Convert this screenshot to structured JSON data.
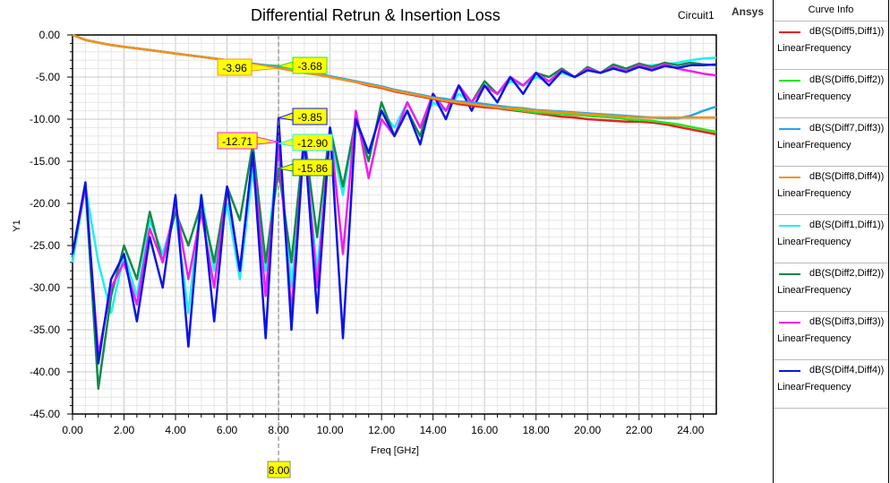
{
  "header": {
    "title": "Differential Retrun & Insertion Loss",
    "circuit": "Circuit1",
    "brand": "Ansys"
  },
  "legend": {
    "header": "Curve Info",
    "items": [
      {
        "name": "dB(S(Diff5,Diff1))",
        "sub": "LinearFrequency",
        "color": "#e8201e"
      },
      {
        "name": "dB(S(Diff6,Diff2))",
        "sub": "LinearFrequency",
        "color": "#22e81e"
      },
      {
        "name": "dB(S(Diff7,Diff3))",
        "sub": "LinearFrequency",
        "color": "#1ea8f0"
      },
      {
        "name": "dB(S(Diff8,Diff4))",
        "sub": "LinearFrequency",
        "color": "#f5901e"
      },
      {
        "name": "dB(S(Diff1,Diff1))",
        "sub": "LinearFrequency",
        "color": "#1ef0f0"
      },
      {
        "name": "dB(S(Diff2,Diff2))",
        "sub": "LinearFrequency",
        "color": "#128a4a"
      },
      {
        "name": "dB(S(Diff3,Diff3))",
        "sub": "LinearFrequency",
        "color": "#f01ef0"
      },
      {
        "name": "dB(S(Diff4,Diff4))",
        "sub": "LinearFrequency",
        "color": "#0a14e6"
      }
    ]
  },
  "chart_data": {
    "type": "line",
    "title": "Differential Retrun & Insertion Loss",
    "xlabel": "Freq [GHz]",
    "ylabel": "Y1",
    "xlim": [
      0,
      25
    ],
    "ylim": [
      -45,
      0
    ],
    "x_ticks": [
      "0.00",
      "2.00",
      "4.00",
      "6.00",
      "8.00",
      "10.00",
      "12.00",
      "14.00",
      "16.00",
      "18.00",
      "20.00",
      "22.00",
      "24.00"
    ],
    "y_ticks": [
      "0.00",
      "-5.00",
      "-10.00",
      "-15.00",
      "-20.00",
      "-25.00",
      "-30.00",
      "-35.00",
      "-40.00",
      "-45.00"
    ],
    "grid": true,
    "legend_position": "right",
    "x": [
      0,
      0.5,
      1,
      1.5,
      2,
      2.5,
      3,
      3.5,
      4,
      4.5,
      5,
      5.5,
      6,
      6.5,
      7,
      7.5,
      8,
      8.5,
      9,
      9.5,
      10,
      10.5,
      11,
      11.5,
      12,
      12.5,
      13,
      13.5,
      14,
      14.5,
      15,
      15.5,
      16,
      16.5,
      17,
      17.5,
      18,
      18.5,
      19,
      19.5,
      20,
      20.5,
      21,
      21.5,
      22,
      22.5,
      23,
      23.5,
      24,
      24.5,
      25
    ],
    "series": [
      {
        "name": "dB(S(Diff5,Diff1))",
        "color": "#e8201e",
        "values": [
          0,
          -0.6,
          -0.9,
          -1.2,
          -1.4,
          -1.6,
          -1.8,
          -2.0,
          -2.2,
          -2.4,
          -2.6,
          -2.8,
          -3.0,
          -3.3,
          -3.5,
          -3.7,
          -3.9,
          -4.2,
          -4.5,
          -4.7,
          -5.0,
          -5.3,
          -5.6,
          -6.0,
          -6.3,
          -6.7,
          -7.0,
          -7.3,
          -7.6,
          -7.9,
          -8.2,
          -8.4,
          -8.6,
          -8.7,
          -8.9,
          -9.1,
          -9.3,
          -9.5,
          -9.7,
          -9.8,
          -10.0,
          -10.1,
          -10.2,
          -10.3,
          -10.3,
          -10.4,
          -10.6,
          -10.9,
          -11.2,
          -11.5,
          -11.8
        ]
      },
      {
        "name": "dB(S(Diff6,Diff2))",
        "color": "#22e81e",
        "values": [
          0,
          -0.6,
          -0.9,
          -1.2,
          -1.4,
          -1.6,
          -1.8,
          -2.0,
          -2.2,
          -2.4,
          -2.6,
          -2.8,
          -3.0,
          -3.3,
          -3.5,
          -3.6,
          -3.68,
          -4.0,
          -4.4,
          -4.6,
          -4.9,
          -5.2,
          -5.5,
          -5.9,
          -6.2,
          -6.6,
          -6.9,
          -7.2,
          -7.5,
          -7.8,
          -8.0,
          -8.2,
          -8.4,
          -8.6,
          -8.8,
          -9.0,
          -9.2,
          -9.3,
          -9.4,
          -9.5,
          -9.6,
          -9.7,
          -9.8,
          -10.0,
          -10.1,
          -10.2,
          -10.4,
          -10.6,
          -10.9,
          -11.2,
          -11.5
        ]
      },
      {
        "name": "dB(S(Diff7,Diff3))",
        "color": "#1ea8f0",
        "values": [
          0,
          -0.6,
          -0.9,
          -1.2,
          -1.4,
          -1.6,
          -1.8,
          -2.0,
          -2.2,
          -2.4,
          -2.6,
          -2.8,
          -3.0,
          -3.2,
          -3.4,
          -3.6,
          -3.8,
          -4.1,
          -4.4,
          -4.6,
          -4.9,
          -5.2,
          -5.5,
          -5.8,
          -6.1,
          -6.5,
          -6.8,
          -7.1,
          -7.4,
          -7.6,
          -7.9,
          -8.0,
          -8.2,
          -8.4,
          -8.6,
          -8.7,
          -8.9,
          -9.0,
          -9.1,
          -9.2,
          -9.3,
          -9.4,
          -9.5,
          -9.6,
          -9.7,
          -9.8,
          -9.9,
          -9.9,
          -9.6,
          -9.0,
          -8.5
        ]
      },
      {
        "name": "dB(S(Diff8,Diff4))",
        "color": "#f5901e",
        "values": [
          0,
          -0.6,
          -0.9,
          -1.2,
          -1.4,
          -1.6,
          -1.8,
          -2.0,
          -2.2,
          -2.4,
          -2.6,
          -2.8,
          -3.0,
          -3.3,
          -3.5,
          -3.7,
          -3.96,
          -4.2,
          -4.5,
          -4.7,
          -5.0,
          -5.3,
          -5.6,
          -5.9,
          -6.2,
          -6.6,
          -6.9,
          -7.2,
          -7.5,
          -7.8,
          -8.0,
          -8.2,
          -8.4,
          -8.6,
          -8.7,
          -8.8,
          -9.0,
          -9.1,
          -9.2,
          -9.3,
          -9.4,
          -9.5,
          -9.6,
          -9.7,
          -9.8,
          -9.8,
          -9.8,
          -9.8,
          -9.8,
          -9.8,
          -9.8
        ]
      },
      {
        "name": "dB(S(Diff1,Diff1))",
        "color": "#1ef0f0",
        "values": [
          -27,
          -18,
          -27,
          -33,
          -26,
          -31,
          -22,
          -26,
          -21,
          -33,
          -19,
          -28,
          -20,
          -29,
          -16,
          -28,
          -12.9,
          -30,
          -13,
          -28,
          -12,
          -19,
          -10,
          -14,
          -9,
          -11,
          -8,
          -11,
          -8,
          -9,
          -7,
          -8,
          -6,
          -7,
          -5.5,
          -6,
          -5,
          -5.5,
          -4.5,
          -5,
          -4,
          -4.5,
          -4,
          -4,
          -3.8,
          -3.6,
          -3.5,
          -3.3,
          -3.0,
          -2.8,
          -2.7
        ]
      },
      {
        "name": "dB(S(Diff2,Diff2))",
        "color": "#128a4a",
        "values": [
          -26,
          -18,
          -42,
          -31,
          -25,
          -29,
          -21,
          -27,
          -21,
          -25,
          -20,
          -27,
          -18,
          -22,
          -13,
          -27,
          -15.86,
          -27,
          -12,
          -24,
          -11,
          -18,
          -10,
          -15,
          -8,
          -12,
          -9,
          -12,
          -7,
          -9,
          -6,
          -8,
          -5.5,
          -7,
          -5,
          -6,
          -4.5,
          -5,
          -4,
          -5,
          -3.8,
          -4.5,
          -3.5,
          -4,
          -3.4,
          -3.8,
          -3.3,
          -3.6,
          -3.3,
          -3.5,
          -3.6
        ]
      },
      {
        "name": "dB(S(Diff3,Diff3))",
        "color": "#f01ef0",
        "values": [
          -26,
          -18,
          -38,
          -30,
          -27,
          -32,
          -23,
          -27,
          -20,
          -29,
          -21,
          -30,
          -18,
          -28,
          -14,
          -31,
          -12.71,
          -33,
          -12,
          -30,
          -11,
          -26,
          -9,
          -17,
          -10,
          -12,
          -8,
          -11,
          -7,
          -9,
          -6,
          -8,
          -6,
          -7,
          -5,
          -6,
          -4.5,
          -5.5,
          -4.2,
          -5,
          -4,
          -4.5,
          -3.8,
          -4.3,
          -3.6,
          -4,
          -3.5,
          -4.0,
          -4.3,
          -4.6,
          -4.8
        ]
      },
      {
        "name": "dB(S(Diff4,Diff4))",
        "color": "#0a14e6",
        "values": [
          -26,
          -17.5,
          -39,
          -29,
          -26,
          -34,
          -24,
          -30,
          -19,
          -37,
          -19,
          -34,
          -18,
          -28,
          -14,
          -36,
          -9.85,
          -35,
          -12,
          -33,
          -11,
          -36,
          -10,
          -14,
          -9,
          -12,
          -9,
          -13,
          -7,
          -10,
          -6,
          -9,
          -6,
          -8,
          -5,
          -7,
          -4.5,
          -6,
          -4.3,
          -5,
          -4.2,
          -4.5,
          -4,
          -4.4,
          -3.8,
          -4.2,
          -3.7,
          -3.9,
          -3.6,
          -3.6,
          -3.5
        ]
      }
    ],
    "markers": [
      {
        "label": "-3.96",
        "x": 8.0,
        "y": -3.96,
        "series": "dB(S(Diff8,Diff4))",
        "side": "left"
      },
      {
        "label": "-3.68",
        "x": 8.0,
        "y": -3.68,
        "series": "dB(S(Diff6,Diff2))",
        "side": "right"
      },
      {
        "label": "-9.85",
        "x": 8.0,
        "y": -9.85,
        "series": "dB(S(Diff4,Diff4))",
        "side": "right"
      },
      {
        "label": "-12.71",
        "x": 8.0,
        "y": -12.71,
        "series": "dB(S(Diff3,Diff3))",
        "side": "left"
      },
      {
        "label": "-12.90",
        "x": 8.0,
        "y": -12.9,
        "series": "dB(S(Diff1,Diff1))",
        "side": "right"
      },
      {
        "label": "-15.86",
        "x": 8.0,
        "y": -15.86,
        "series": "dB(S(Diff2,Diff2))",
        "side": "right"
      }
    ],
    "cursor_x": "8.00"
  }
}
